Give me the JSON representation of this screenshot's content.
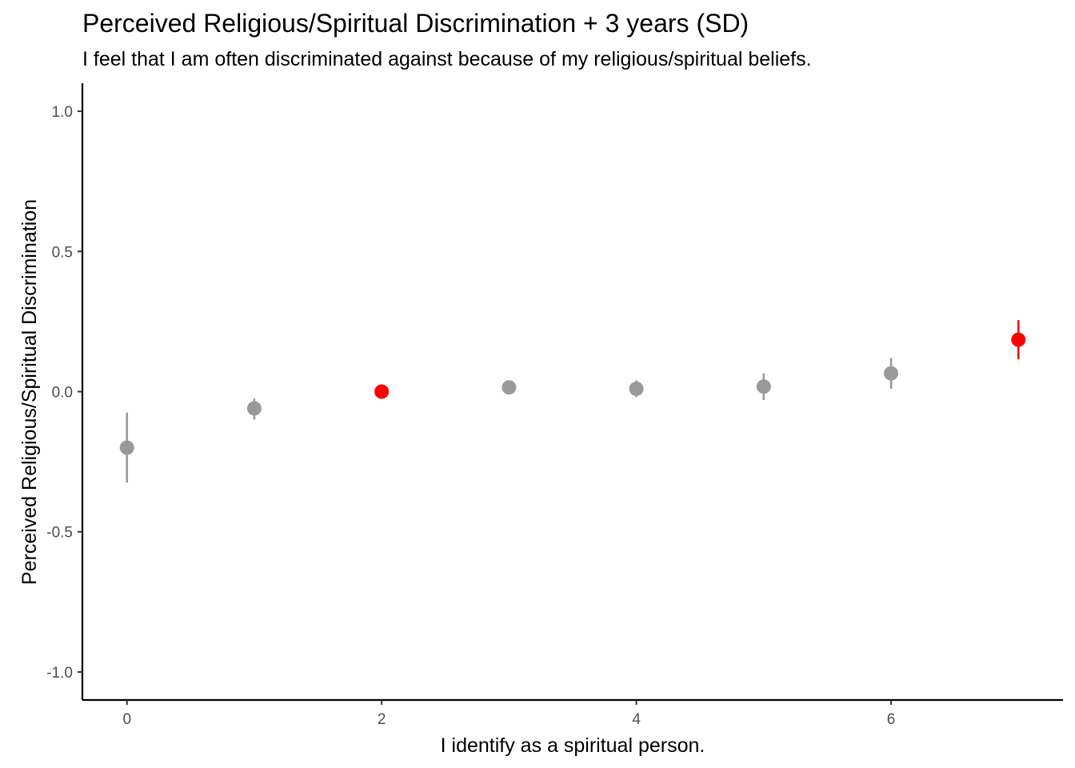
{
  "chart_data": {
    "type": "scatter",
    "title": "Perceived Religious/Spiritual  Discrimination + 3 years (SD)",
    "subtitle": "I feel that I am often discriminated against because of my religious/spiritual beliefs.",
    "xlabel": "I identify as a spiritual person.",
    "ylabel": "Perceived Religious/Spiritual  Discrimination",
    "xlim": [
      -0.35,
      7.35
    ],
    "ylim": [
      -1.1,
      1.1
    ],
    "x_ticks": [
      0,
      2,
      4,
      6
    ],
    "y_ticks": [
      -1.0,
      -0.5,
      0.0,
      0.5,
      1.0
    ],
    "x_tick_labels": [
      "0",
      "2",
      "4",
      "6"
    ],
    "y_tick_labels": [
      "-1.0",
      "-0.5",
      "0.0",
      "0.5",
      "1.0"
    ],
    "grid": false,
    "colors": {
      "default": "#999999",
      "highlight": "#ff0000"
    },
    "points": [
      {
        "x": 0,
        "y": -0.2,
        "lower": -0.325,
        "upper": -0.075,
        "color": "#999999"
      },
      {
        "x": 1,
        "y": -0.06,
        "lower": -0.1,
        "upper": -0.025,
        "color": "#999999"
      },
      {
        "x": 2,
        "y": 0.0,
        "lower": 0.0,
        "upper": 0.0,
        "color": "#ff0000"
      },
      {
        "x": 3,
        "y": 0.015,
        "lower": 0.005,
        "upper": 0.025,
        "color": "#999999"
      },
      {
        "x": 4,
        "y": 0.01,
        "lower": -0.02,
        "upper": 0.04,
        "color": "#999999"
      },
      {
        "x": 5,
        "y": 0.018,
        "lower": -0.03,
        "upper": 0.065,
        "color": "#999999"
      },
      {
        "x": 6,
        "y": 0.065,
        "lower": 0.01,
        "upper": 0.12,
        "color": "#999999"
      },
      {
        "x": 7,
        "y": 0.185,
        "lower": 0.115,
        "upper": 0.255,
        "color": "#ff0000"
      }
    ]
  }
}
